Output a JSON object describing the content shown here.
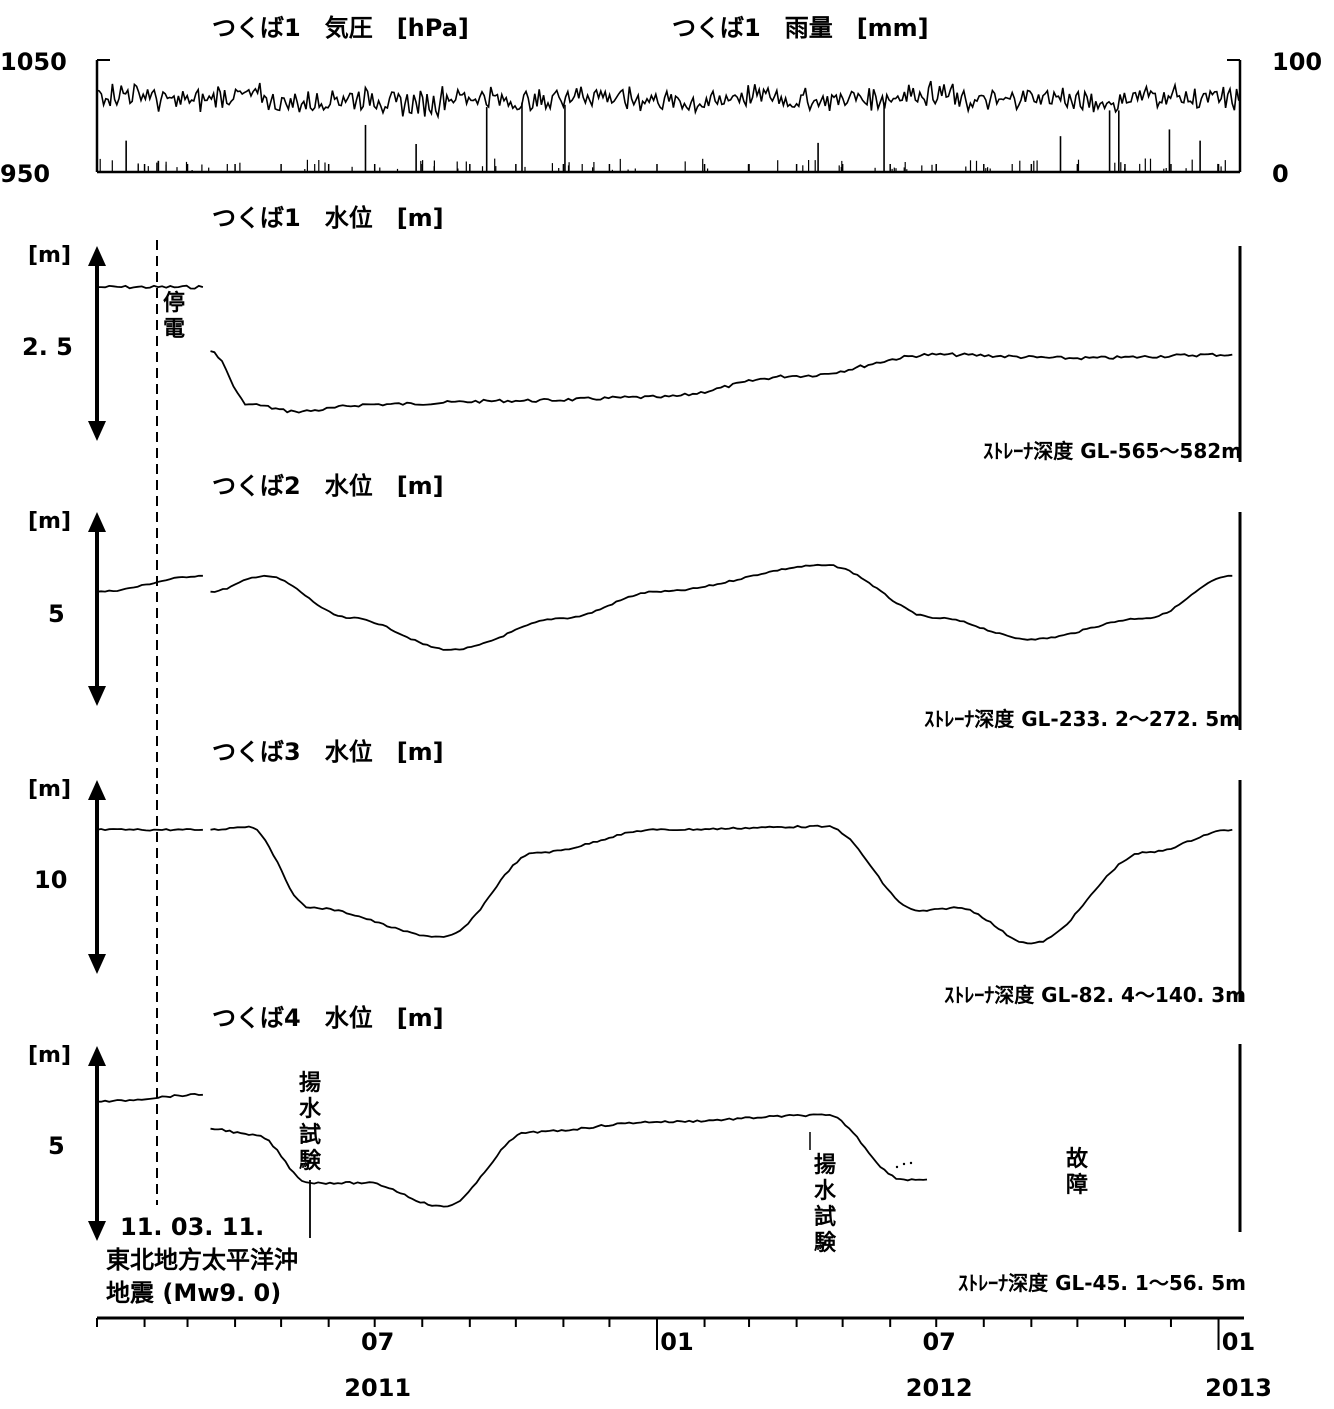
{
  "chart_data": [
    {
      "id": "pressure_rain",
      "type": "line",
      "title_left": "つくば1　気圧　[hPa]",
      "title_right": "つくば1　雨量　[mm]",
      "y_left_ticks": [
        "1050",
        "950"
      ],
      "y_left_range": [
        950,
        1050
      ],
      "y_right_ticks": [
        "100",
        "0"
      ],
      "y_right_range": [
        0,
        100
      ],
      "pressure_level_hPa": 1015,
      "series": [
        {
          "name": "気圧",
          "unit": "hPa",
          "values": [
            1020,
            1014,
            1018,
            1012,
            1016,
            1011,
            1017,
            1013,
            1019,
            1015,
            1012,
            1018,
            1014,
            1016,
            1020,
            1013,
            1017,
            1012,
            1018,
            1015
          ]
        },
        {
          "name": "雨量",
          "unit": "mm",
          "x": [
            "2011-01-20",
            "2011-02-10",
            "2011-06-25",
            "2011-07-28",
            "2011-09-12",
            "2011-10-05",
            "2011-11-02",
            "2012-04-15",
            "2012-05-28",
            "2012-09-20",
            "2012-10-22",
            "2012-10-28",
            "2012-11-30",
            "2012-12-20"
          ],
          "values": [
            28,
            10,
            42,
            25,
            58,
            62,
            60,
            26,
            62,
            32,
            55,
            55,
            38,
            28
          ]
        }
      ]
    },
    {
      "id": "well1",
      "type": "line",
      "title": "つくば1　水位　[m]",
      "y_unit": "[m]",
      "y_tick": "2. 5",
      "strainer": "ｽﾄﾚｰﾅ深度 GL-565～582m",
      "series": [
        {
          "name": "水位",
          "x": [
            "2011-01-01",
            "2011-03-11",
            "2011-03-16",
            "2011-04-10",
            "2011-05-10",
            "2011-07-01",
            "2011-10-01",
            "2012-01-01",
            "2012-04-01",
            "2012-07-01",
            "2012-10-01",
            "2013-01-10"
          ],
          "values": [
            3.5,
            3.5,
            2.6,
            1.85,
            1.75,
            1.85,
            1.9,
            1.95,
            2.25,
            2.55,
            2.5,
            2.55
          ]
        }
      ]
    },
    {
      "id": "well2",
      "type": "line",
      "title": "つくば2　水位　[m]",
      "y_unit": "[m]",
      "y_tick": "5",
      "strainer": "ｽﾄﾚｰﾅ深度 GL-233. 2～272. 5m",
      "series": [
        {
          "name": "水位",
          "x": [
            "2011-01-01",
            "2011-03-11",
            "2011-03-16",
            "2011-04-20",
            "2011-06-15",
            "2011-08-20",
            "2011-11-01",
            "2012-01-01",
            "2012-04-20",
            "2012-07-01",
            "2012-09-01",
            "2012-11-15",
            "2013-01-10"
          ],
          "values": [
            5.4,
            5.7,
            5.4,
            5.7,
            4.9,
            4.3,
            4.9,
            5.4,
            5.9,
            4.9,
            4.5,
            4.9,
            5.7
          ]
        }
      ]
    },
    {
      "id": "well3",
      "type": "line",
      "title": "つくば3　水位　[m]",
      "y_unit": "[m]",
      "y_tick": "10",
      "strainer": "ｽﾄﾚｰﾅ深度 GL-82. 4～140. 3m",
      "series": [
        {
          "name": "水位",
          "x": [
            "2011-01-01",
            "2011-03-11",
            "2011-03-16",
            "2011-04-10",
            "2011-05-20",
            "2011-08-15",
            "2011-10-15",
            "2012-01-01",
            "2012-04-20",
            "2012-06-20",
            "2012-07-15",
            "2012-09-01",
            "2012-11-15",
            "2013-01-10"
          ],
          "values": [
            11.7,
            11.7,
            11.7,
            11.8,
            9.3,
            8.4,
            11.0,
            11.7,
            11.8,
            9.2,
            9.3,
            8.2,
            11.0,
            11.7
          ]
        }
      ]
    },
    {
      "id": "well4",
      "type": "line",
      "title": "つくば4　水位　[m]",
      "y_unit": "[m]",
      "y_tick": "5",
      "strainer": "ｽﾄﾚｰﾅ深度 GL-45. 1～56. 5m",
      "series": [
        {
          "name": "水位",
          "x": [
            "2011-01-01",
            "2011-03-11",
            "2011-03-16",
            "2011-04-15",
            "2011-05-20",
            "2011-06-25",
            "2011-08-15",
            "2011-10-10",
            "2012-01-01",
            "2012-04-20",
            "2012-06-10",
            "2012-06-25"
          ],
          "values": [
            6.1,
            6.3,
            5.3,
            5.1,
            3.7,
            3.7,
            3.0,
            5.2,
            5.5,
            5.7,
            3.8,
            3.8
          ]
        }
      ]
    }
  ],
  "x_axis": {
    "months": [
      {
        "label": "07",
        "x": "2011-07-01"
      },
      {
        "label": "01",
        "x": "2012-01-01"
      },
      {
        "label": "07",
        "x": "2012-07-01"
      },
      {
        "label": "01",
        "x": "2013-01-01"
      }
    ],
    "years": [
      {
        "label": "2011",
        "x": "2011-07-01"
      },
      {
        "label": "2012",
        "x": "2012-07-01"
      },
      {
        "label": "2013",
        "x": "2013-01-01"
      }
    ]
  },
  "annotations": {
    "outage": "停電",
    "pump_test": "揚水試験",
    "failure": "故障",
    "earthquake_date": "11. 03. 11.",
    "earthquake_line1": "東北地方太平洋沖",
    "earthquake_line2": "地震 (Mw9. 0)"
  }
}
